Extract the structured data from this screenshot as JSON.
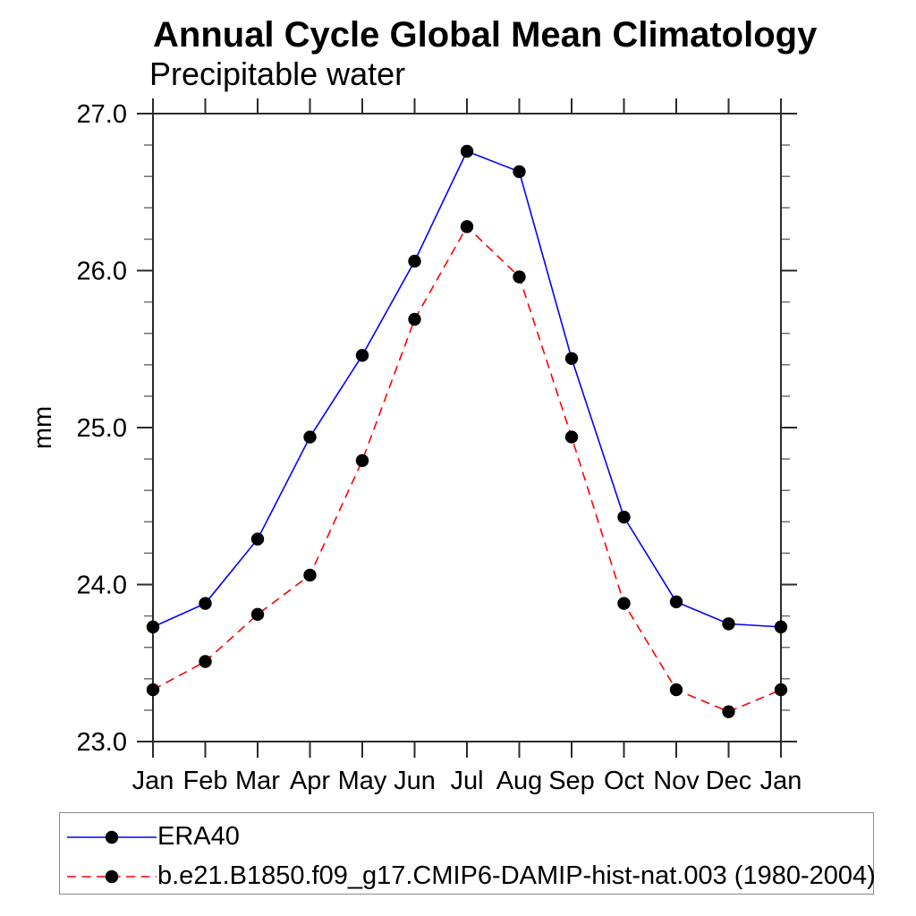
{
  "chart_data": {
    "type": "line",
    "title": "Annual Cycle Global Mean Climatology",
    "subtitle": "Precipitable water",
    "xlabel": "",
    "ylabel": "mm",
    "categories": [
      "Jan",
      "Feb",
      "Mar",
      "Apr",
      "May",
      "Jun",
      "Jul",
      "Aug",
      "Sep",
      "Oct",
      "Nov",
      "Dec",
      "Jan"
    ],
    "ylim": [
      23.0,
      27.0
    ],
    "ytick_major": [
      23.0,
      24.0,
      25.0,
      26.0,
      27.0
    ],
    "ytick_major_labels": [
      "23.0",
      "24.0",
      "25.0",
      "26.0",
      "27.0"
    ],
    "ytick_minor_step": 0.2,
    "grid": false,
    "legend_position": "bottom",
    "axis_color": "#2b2b2b",
    "minor_tick_color": "#6e6e6e",
    "series": [
      {
        "name": "ERA40",
        "color": "#0000ff",
        "line_style": "solid",
        "marker": "filled-circle",
        "marker_color": "#000000",
        "values": [
          23.73,
          23.88,
          24.29,
          24.94,
          25.46,
          26.06,
          26.76,
          26.63,
          25.44,
          24.43,
          23.89,
          23.75,
          23.73
        ]
      },
      {
        "name": "b.e21.B1850.f09_g17.CMIP6-DAMIP-hist-nat.003 (1980-2004)",
        "color": "#ff0000",
        "line_style": "dashed",
        "marker": "filled-circle",
        "marker_color": "#000000",
        "values": [
          23.33,
          23.51,
          23.81,
          24.06,
          24.79,
          25.69,
          26.28,
          25.96,
          24.94,
          23.88,
          23.33,
          23.19,
          23.33
        ]
      }
    ]
  }
}
